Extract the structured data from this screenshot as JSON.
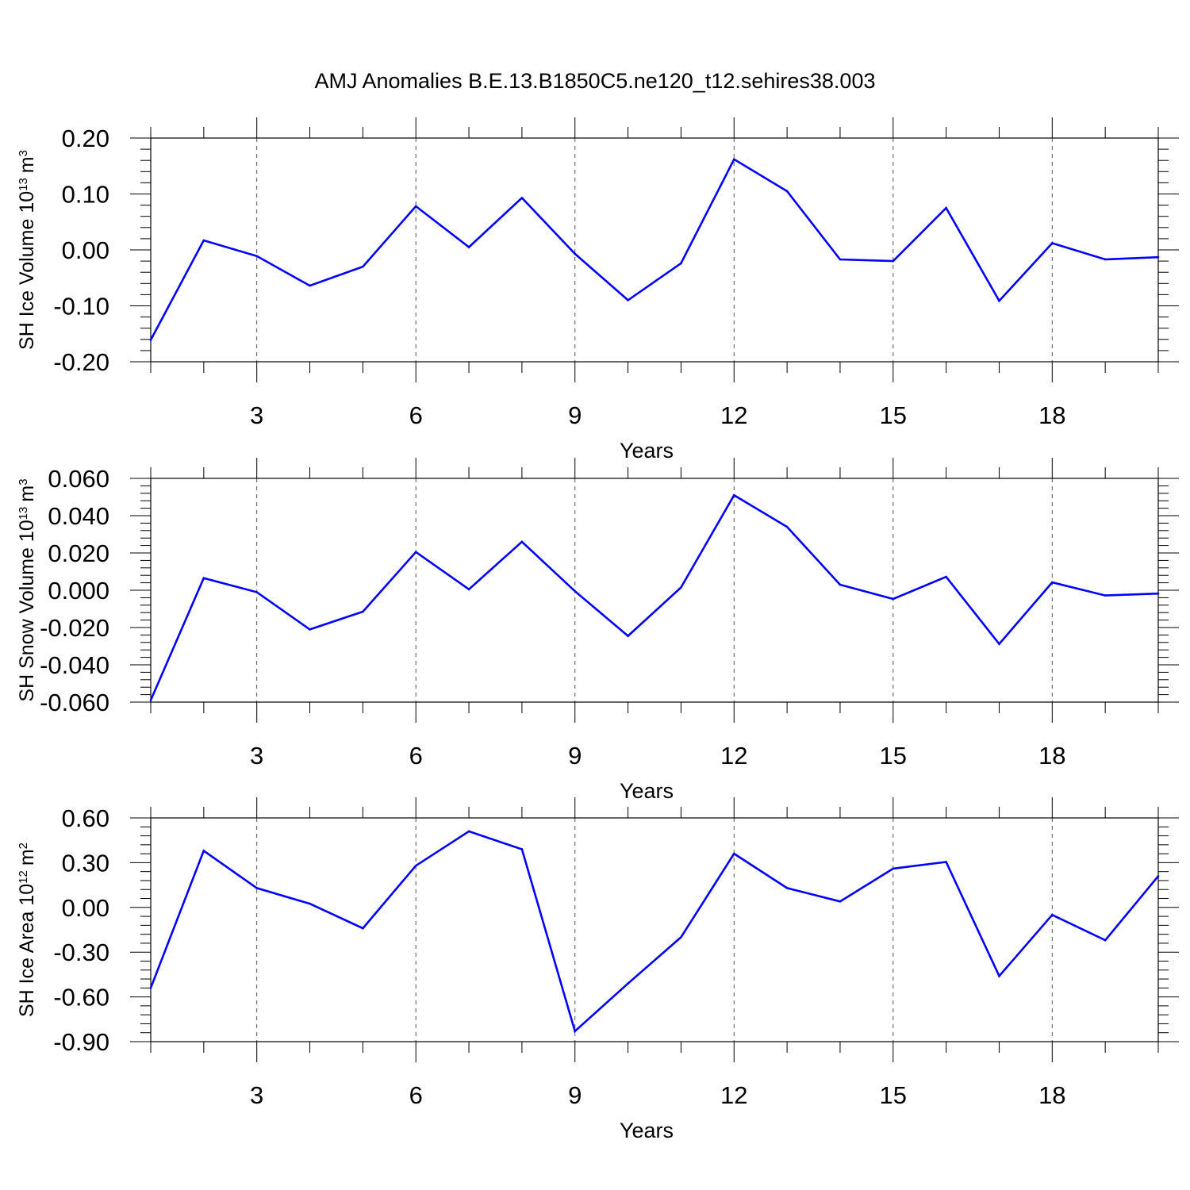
{
  "figure": {
    "title": "AMJ Anomalies B.E.13.B1850C5.ne120_t12.sehires38.003"
  },
  "chart_data": [
    {
      "type": "line",
      "title": "AMJ Anomalies B.E.13.B1850C5.ne120_t12.sehires38.003",
      "xlabel": "Years",
      "ylabel": "SH Ice Volume 10",
      "ylabel_exponent": "13",
      "ylabel_unit": "m",
      "ylabel_unit_exponent": "3",
      "xlim": [
        1,
        20
      ],
      "ylim": [
        -0.2,
        0.2
      ],
      "xticks": [
        3,
        6,
        9,
        12,
        15,
        18
      ],
      "xtick_labels": [
        "3",
        "6",
        "9",
        "12",
        "15",
        "18"
      ],
      "yticks": [
        -0.2,
        -0.1,
        0.0,
        0.1,
        0.2
      ],
      "ytick_labels": [
        "-0.20",
        "-0.10",
        "0.00",
        "0.10",
        "0.20"
      ],
      "grid": "vertical dashed at major x ticks",
      "color": "#0000ff",
      "x": [
        1,
        2,
        3,
        4,
        5,
        6,
        7,
        8,
        9,
        10,
        11,
        12,
        13,
        14,
        15,
        16,
        17,
        18,
        19,
        20
      ],
      "y": [
        -0.161,
        0.017,
        -0.011,
        -0.064,
        -0.03,
        0.078,
        0.005,
        0.093,
        -0.007,
        -0.09,
        -0.024,
        0.162,
        0.105,
        -0.017,
        -0.02,
        0.075,
        -0.091,
        0.012,
        -0.017,
        -0.013
      ]
    },
    {
      "type": "line",
      "xlabel": "Years",
      "ylabel": "SH Snow Volume 10",
      "ylabel_exponent": "13",
      "ylabel_unit": "m",
      "ylabel_unit_exponent": "3",
      "xlim": [
        1,
        20
      ],
      "ylim": [
        -0.06,
        0.06
      ],
      "xticks": [
        3,
        6,
        9,
        12,
        15,
        18
      ],
      "xtick_labels": [
        "3",
        "6",
        "9",
        "12",
        "15",
        "18"
      ],
      "yticks": [
        -0.06,
        -0.04,
        -0.02,
        0.0,
        0.02,
        0.04,
        0.06
      ],
      "ytick_labels": [
        "-0.060",
        "-0.040",
        "-0.020",
        "0.000",
        "0.020",
        "0.040",
        "0.060"
      ],
      "grid": "vertical dashed at major x ticks",
      "color": "#0000ff",
      "x": [
        1,
        2,
        3,
        4,
        5,
        6,
        7,
        8,
        9,
        10,
        11,
        12,
        13,
        14,
        15,
        16,
        17,
        18,
        19,
        20
      ],
      "y": [
        -0.059,
        0.0065,
        -0.001,
        -0.021,
        -0.0115,
        0.0205,
        0.0005,
        0.026,
        -0.0005,
        -0.0245,
        0.0015,
        0.051,
        0.034,
        0.003,
        -0.0047,
        0.0072,
        -0.0288,
        0.0042,
        -0.0028,
        -0.0018
      ]
    },
    {
      "type": "line",
      "xlabel": "Years",
      "ylabel": "SH Ice Area 10",
      "ylabel_exponent": "12",
      "ylabel_unit": "m",
      "ylabel_unit_exponent": "2",
      "xlim": [
        1,
        20
      ],
      "ylim": [
        -0.9,
        0.6
      ],
      "xticks": [
        3,
        6,
        9,
        12,
        15,
        18
      ],
      "xtick_labels": [
        "3",
        "6",
        "9",
        "12",
        "15",
        "18"
      ],
      "yticks": [
        -0.9,
        -0.6,
        -0.3,
        0.0,
        0.3,
        0.6
      ],
      "ytick_labels": [
        "-0.90",
        "-0.60",
        "-0.30",
        "0.00",
        "0.30",
        "0.60"
      ],
      "grid": "vertical dashed at major x ticks",
      "color": "#0000ff",
      "x": [
        1,
        2,
        3,
        4,
        5,
        6,
        7,
        8,
        9,
        10,
        11,
        12,
        13,
        14,
        15,
        16,
        17,
        18,
        19,
        20
      ],
      "y": [
        -0.54,
        0.38,
        0.13,
        0.025,
        -0.14,
        0.28,
        0.51,
        0.39,
        -0.83,
        -0.51,
        -0.2,
        0.36,
        0.13,
        0.04,
        0.26,
        0.305,
        -0.46,
        -0.05,
        -0.22,
        0.21
      ]
    }
  ]
}
